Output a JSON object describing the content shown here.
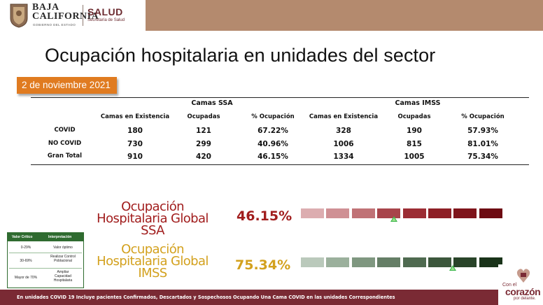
{
  "header": {
    "org_line1": "BAJA",
    "org_line2": "CALIFORNIA",
    "org_sub": "GOBIERNO DEL ESTADO",
    "dept": "SALUD",
    "dept_sub": "Secretaría de Salud"
  },
  "title": "Ocupación hospitalaria en unidades del sector",
  "date": "2 de noviembre 2021",
  "table": {
    "group_ssa": "Camas SSA",
    "group_imss": "Camas IMSS",
    "col_existencia": "Camas en Existencia",
    "col_ocupadas": "Ocupadas",
    "col_pct": "% Ocupación",
    "rows": [
      {
        "label": "COVID",
        "ssa_exist": "180",
        "ssa_ocup": "121",
        "ssa_pct": "67.22%",
        "imss_exist": "328",
        "imss_ocup": "190",
        "imss_pct": "57.93%"
      },
      {
        "label": "NO COVID",
        "ssa_exist": "730",
        "ssa_ocup": "299",
        "ssa_pct": "40.96%",
        "imss_exist": "1006",
        "imss_ocup": "815",
        "imss_pct": "81.01%"
      },
      {
        "label": "Gran Total",
        "ssa_exist": "910",
        "ssa_ocup": "420",
        "ssa_pct": "46.15%",
        "imss_exist": "1334",
        "imss_ocup": "1005",
        "imss_pct": "75.34%"
      }
    ]
  },
  "gauges": {
    "ssa": {
      "line1": "Ocupación",
      "line2": "Hospitalaria Global",
      "line3": "SSA",
      "value": "46.15%",
      "level": 0.4615,
      "label_color": "#a11d1d",
      "segment_colors": [
        "#dcadb0",
        "#cf9094",
        "#c07276",
        "#a8444b",
        "#9c2d34",
        "#8e1f26",
        "#7f141b",
        "#6d0b12"
      ]
    },
    "imss": {
      "line1": "Ocupación",
      "line2": "Hospitalaria Global",
      "line3": "IMSS",
      "value": "75.34%",
      "level": 0.7534,
      "label_color": "#d3a11e",
      "segment_colors": [
        "#bac9bb",
        "#9bb09c",
        "#7f9780",
        "#657e66",
        "#4f6a50",
        "#3c573c",
        "#294429",
        "#193319"
      ]
    },
    "marker_color": "#39b54a"
  },
  "legend": {
    "header_col1": "Valor Crítico",
    "header_col2": "Interpretación",
    "rows": [
      {
        "range": "0-29%",
        "meaning": "Valor óptimo"
      },
      {
        "range": "30-69%",
        "meaning": "Realizar Control Poblacional"
      },
      {
        "range": "Mayor de 70%",
        "meaning": "Ampliar Capacidad Hospitalaria"
      }
    ]
  },
  "footer": {
    "note": "En unidades COVID 19 Incluye pacientes Confirmados, Descartados y Sospechosos Ocupando Una Cama COVID en las unidades Correspondientes",
    "logo_line1": "Con el",
    "logo_line2": "corazón",
    "logo_line3": "por delante."
  }
}
